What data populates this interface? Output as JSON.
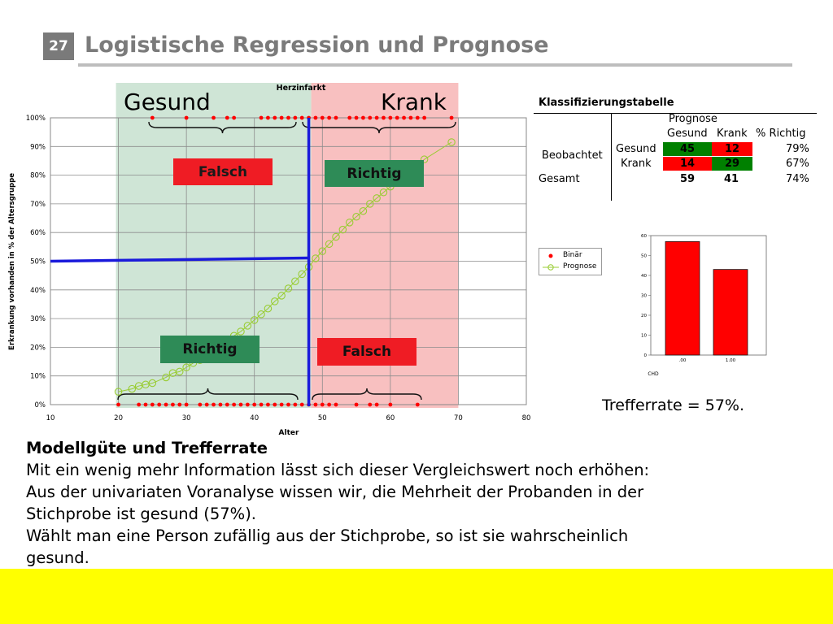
{
  "slide": {
    "number": "27",
    "title": "Logistische Regression und Prognose"
  },
  "colors": {
    "healthy_region": "#cfe5d6",
    "sick_region": "#f8c0c0",
    "threshold_line": "#1a1adb",
    "binary_points": "#ff0000",
    "prognosis_points": "#99cc33",
    "correct_cell": "#008000",
    "wrong_cell": "#ff0000",
    "bar_fill": "#ff0000",
    "highlight_band": "#ffff00"
  },
  "regions": {
    "healthy_label": "Gesund",
    "sick_label": "Krank"
  },
  "chart_data": {
    "type": "scatter",
    "title": "Herzinfarkt",
    "xlabel": "Alter",
    "ylabel": "Erkrankung vorhanden in % der Altersgruppe",
    "xlim": [
      10,
      80
    ],
    "ylim": [
      0,
      100
    ],
    "x_ticks": [
      "10",
      "20",
      "30",
      "40",
      "50",
      "60",
      "70",
      "80"
    ],
    "y_ticks": [
      "0%",
      "10%",
      "20%",
      "30%",
      "40%",
      "50%",
      "60%",
      "70%",
      "80%",
      "90%",
      "100%"
    ],
    "grid": true,
    "healthy_region_x": [
      20,
      48
    ],
    "sick_region_x": [
      48,
      70
    ],
    "threshold_age": 48,
    "threshold_probability": 50,
    "series": [
      {
        "name": "Binär",
        "x": [
          25,
          30,
          34,
          36,
          37,
          41,
          42,
          43,
          44,
          45,
          46,
          47,
          48,
          49,
          50,
          51,
          52,
          54,
          55,
          56,
          57,
          58,
          59,
          60,
          61,
          62,
          63,
          64,
          65,
          69,
          20,
          23,
          24,
          25,
          26,
          27,
          28,
          29,
          30,
          32,
          33,
          34,
          35,
          36,
          37,
          38,
          39,
          40,
          41,
          42,
          43,
          44,
          45,
          46,
          47,
          48,
          49,
          50,
          51,
          52,
          55,
          57,
          58,
          60,
          64
        ],
        "y": [
          100,
          100,
          100,
          100,
          100,
          100,
          100,
          100,
          100,
          100,
          100,
          100,
          100,
          100,
          100,
          100,
          100,
          100,
          100,
          100,
          100,
          100,
          100,
          100,
          100,
          100,
          100,
          100,
          100,
          100,
          0,
          0,
          0,
          0,
          0,
          0,
          0,
          0,
          0,
          0,
          0,
          0,
          0,
          0,
          0,
          0,
          0,
          0,
          0,
          0,
          0,
          0,
          0,
          0,
          0,
          0,
          0,
          0,
          0,
          0,
          0,
          0,
          0,
          0,
          0
        ]
      },
      {
        "name": "Prognose",
        "x": [
          20,
          22,
          23,
          24,
          25,
          27,
          28,
          29,
          30,
          31,
          32,
          33,
          34,
          35,
          36,
          37,
          38,
          39,
          40,
          41,
          42,
          43,
          44,
          45,
          46,
          47,
          48,
          49,
          50,
          51,
          52,
          53,
          54,
          55,
          56,
          57,
          58,
          59,
          60,
          62,
          63,
          64,
          65,
          69
        ],
        "y": [
          4.5,
          5.5,
          6.5,
          7,
          7.5,
          9.5,
          11,
          11.5,
          13,
          14.5,
          15.5,
          17,
          18.5,
          20,
          22,
          24,
          25.5,
          27.5,
          29.5,
          31.5,
          33.5,
          36,
          38,
          40.5,
          43,
          45.5,
          48,
          51,
          53.5,
          56,
          58.5,
          61,
          63.5,
          65.5,
          67.5,
          70,
          72,
          74,
          76,
          79,
          81.5,
          83.5,
          85.5,
          91.5
        ]
      }
    ],
    "legend": {
      "position": "right",
      "binary": "Binär",
      "prognosis": "Prognose"
    },
    "annotations": {
      "falsch_top": "Falsch",
      "richtig_top": "Richtig",
      "richtig_bottom": "Richtig",
      "falsch_bottom": "Falsch"
    }
  },
  "bar_chart": {
    "type": "bar",
    "categories": [
      ".00",
      "1.00"
    ],
    "values": [
      57,
      43
    ],
    "ylim": [
      0,
      60
    ],
    "y_ticks": [
      "0",
      "10",
      "20",
      "30",
      "40",
      "50",
      "60"
    ],
    "xlabel": "CHD"
  },
  "classification": {
    "title": "Klassifizierungstabelle",
    "prognose_header": "Prognose",
    "col_gesund": "Gesund",
    "col_krank": "Krank",
    "col_richtig": "% Richtig",
    "row_group": "Beobachtet",
    "row_gesund": "Gesund",
    "row_krank": "Krank",
    "row_gesamt": "Gesamt",
    "gesund_gesund": "45",
    "gesund_krank": "12",
    "gesund_pct": "79%",
    "krank_gesund": "14",
    "krank_krank": "29",
    "krank_pct": "67%",
    "gesamt_gesund": "59",
    "gesamt_krank": "41",
    "gesamt_pct": "74%"
  },
  "trefferrate": "Trefferrate =  57%.",
  "body": {
    "heading": "Modellgüte und Trefferrate",
    "lines": [
      "Mit ein wenig mehr Information lässt sich dieser Vergleichswert noch erhöhen:",
      "Aus der univariaten Voranalyse wissen wir, die Mehrheit der Probanden in der",
      "Stichprobe ist gesund (57%).",
      "Wählt man eine Person zufällig aus der Stichprobe, so ist sie wahrscheinlich",
      "gesund."
    ]
  }
}
